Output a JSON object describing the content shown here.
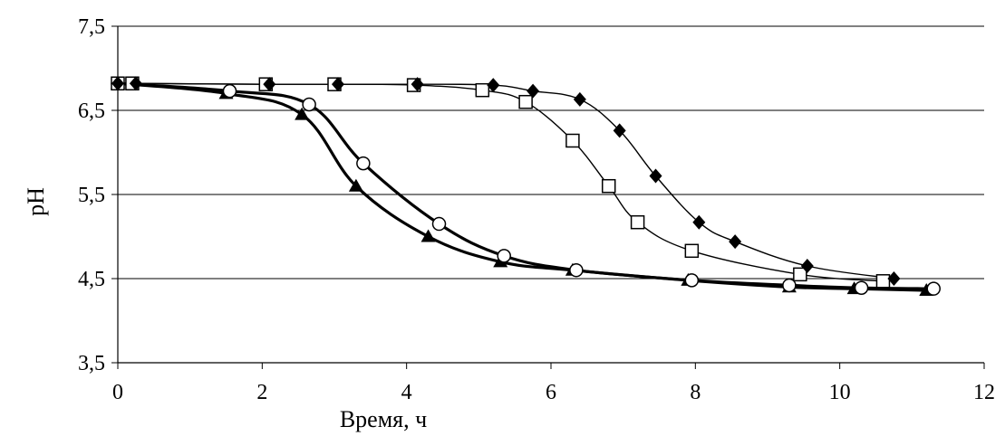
{
  "chart_data": {
    "type": "line",
    "title": "",
    "xlabel": "Время, ч",
    "ylabel": "pH",
    "xlim": [
      0,
      12
    ],
    "ylim": [
      3.5,
      7.5
    ],
    "xticks": [
      "0",
      "2",
      "4",
      "6",
      "8",
      "10",
      "12"
    ],
    "yticks": [
      "3,5",
      "4,5",
      "5,5",
      "6,5",
      "7,5"
    ],
    "grid": "horizontal",
    "legend": "none",
    "series": [
      {
        "marker": "triangle",
        "color": "#000000",
        "points": [
          [
            0,
            6.82
          ],
          [
            1.5,
            6.7
          ],
          [
            2.55,
            6.45
          ],
          [
            3.3,
            5.6
          ],
          [
            4.3,
            5.0
          ],
          [
            5.3,
            4.7
          ],
          [
            6.3,
            4.6
          ],
          [
            7.9,
            4.48
          ],
          [
            9.3,
            4.4
          ],
          [
            10.2,
            4.38
          ],
          [
            11.2,
            4.36
          ]
        ]
      },
      {
        "marker": "circle",
        "color": "#000000",
        "points": [
          [
            0,
            6.82
          ],
          [
            1.55,
            6.73
          ],
          [
            2.65,
            6.57
          ],
          [
            3.4,
            5.87
          ],
          [
            4.45,
            5.15
          ],
          [
            5.35,
            4.77
          ],
          [
            6.35,
            4.6
          ],
          [
            7.95,
            4.48
          ],
          [
            9.3,
            4.42
          ],
          [
            10.3,
            4.39
          ],
          [
            11.3,
            4.38
          ]
        ]
      },
      {
        "marker": "square",
        "color": "#000000",
        "points": [
          [
            0,
            6.82
          ],
          [
            0.2,
            6.82
          ],
          [
            2.05,
            6.81
          ],
          [
            3.0,
            6.81
          ],
          [
            4.1,
            6.8
          ],
          [
            5.05,
            6.74
          ],
          [
            5.65,
            6.6
          ],
          [
            6.3,
            6.14
          ],
          [
            6.8,
            5.6
          ],
          [
            7.2,
            5.17
          ],
          [
            7.95,
            4.83
          ],
          [
            9.45,
            4.55
          ],
          [
            10.6,
            4.47
          ]
        ]
      },
      {
        "marker": "diamond",
        "color": "#000000",
        "points": [
          [
            0,
            6.82
          ],
          [
            0.25,
            6.82
          ],
          [
            2.1,
            6.81
          ],
          [
            3.05,
            6.81
          ],
          [
            4.15,
            6.81
          ],
          [
            5.2,
            6.8
          ],
          [
            5.75,
            6.73
          ],
          [
            6.4,
            6.63
          ],
          [
            6.95,
            6.26
          ],
          [
            7.45,
            5.72
          ],
          [
            8.05,
            5.17
          ],
          [
            8.55,
            4.94
          ],
          [
            9.55,
            4.65
          ],
          [
            10.75,
            4.5
          ]
        ]
      }
    ]
  }
}
